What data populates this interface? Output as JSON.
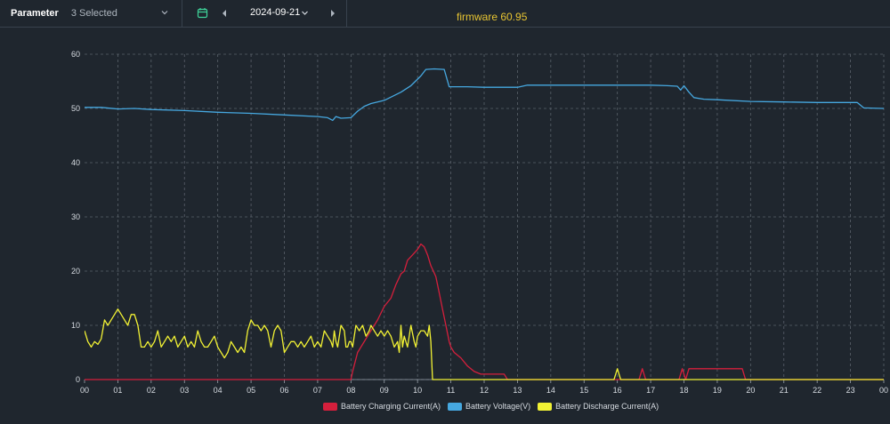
{
  "toolbar": {
    "parameter_label": "Parameter",
    "parameter_value": "3 Selected",
    "date": "2024-09-21",
    "firmware": "firmware 60.95",
    "icons": [
      "chevron-down-icon",
      "calendar-icon",
      "chevron-left-icon",
      "chevron-right-icon"
    ]
  },
  "colors": {
    "background": "#1f262e",
    "grid": "#5a626b",
    "charging": "#d51f3c",
    "voltage": "#46a8e0",
    "discharge": "#f2f234",
    "firmware": "#e7c432",
    "calendar": "#3fd49a"
  },
  "chart_data": {
    "type": "line",
    "title": "",
    "xlabel": "",
    "ylabel": "",
    "x_unit": "hour of day",
    "x_ticks": [
      "00",
      "01",
      "02",
      "03",
      "04",
      "05",
      "06",
      "07",
      "08",
      "09",
      "10",
      "11",
      "12",
      "13",
      "14",
      "15",
      "16",
      "17",
      "18",
      "19",
      "20",
      "21",
      "22",
      "23",
      "00"
    ],
    "xlim": [
      0,
      24
    ],
    "y_ticks": [
      "0",
      "10",
      "20",
      "30",
      "40",
      "50",
      "60"
    ],
    "ylim": [
      0,
      60
    ],
    "grid": true,
    "legend_position": "bottom-center",
    "series": [
      {
        "name": "Battery Charging Current(A)",
        "color": "#d51f3c",
        "points": [
          [
            0,
            0
          ],
          [
            8.0,
            0
          ],
          [
            8.05,
            1.5
          ],
          [
            8.2,
            5
          ],
          [
            8.5,
            8
          ],
          [
            8.8,
            11
          ],
          [
            9.0,
            13.5
          ],
          [
            9.2,
            15
          ],
          [
            9.35,
            17.5
          ],
          [
            9.5,
            19.5
          ],
          [
            9.6,
            20
          ],
          [
            9.7,
            22
          ],
          [
            9.85,
            23
          ],
          [
            10.0,
            24
          ],
          [
            10.1,
            25
          ],
          [
            10.2,
            24.5
          ],
          [
            10.3,
            23
          ],
          [
            10.4,
            21
          ],
          [
            10.55,
            19
          ],
          [
            10.65,
            16
          ],
          [
            10.75,
            13
          ],
          [
            10.85,
            10
          ],
          [
            10.95,
            7
          ],
          [
            11.0,
            6
          ],
          [
            11.1,
            5
          ],
          [
            11.3,
            4
          ],
          [
            11.5,
            2.5
          ],
          [
            11.7,
            1.5
          ],
          [
            11.9,
            1
          ],
          [
            12.0,
            1
          ],
          [
            12.6,
            1
          ],
          [
            12.7,
            0
          ],
          [
            16.65,
            0
          ],
          [
            16.75,
            2
          ],
          [
            16.85,
            0
          ],
          [
            17.85,
            0
          ],
          [
            17.95,
            2
          ],
          [
            18.05,
            0
          ],
          [
            18.15,
            2
          ],
          [
            19.75,
            2
          ],
          [
            19.85,
            0
          ],
          [
            24,
            0
          ]
        ]
      },
      {
        "name": "Battery Voltage(V)",
        "color": "#46a8e0",
        "points": [
          [
            0,
            50.2
          ],
          [
            0.5,
            50.2
          ],
          [
            1,
            49.9
          ],
          [
            1.5,
            50
          ],
          [
            2,
            49.8
          ],
          [
            3,
            49.6
          ],
          [
            4,
            49.3
          ],
          [
            5,
            49.1
          ],
          [
            6,
            48.8
          ],
          [
            7,
            48.5
          ],
          [
            7.3,
            48.3
          ],
          [
            7.45,
            47.8
          ],
          [
            7.55,
            48.5
          ],
          [
            7.7,
            48.2
          ],
          [
            8.0,
            48.3
          ],
          [
            8.2,
            49.5
          ],
          [
            8.4,
            50.4
          ],
          [
            8.6,
            50.9
          ],
          [
            9.0,
            51.5
          ],
          [
            9.5,
            53
          ],
          [
            9.8,
            54.2
          ],
          [
            10.1,
            56
          ],
          [
            10.25,
            57.2
          ],
          [
            10.5,
            57.3
          ],
          [
            10.8,
            57.2
          ],
          [
            10.95,
            54
          ],
          [
            11.5,
            54
          ],
          [
            12,
            53.9
          ],
          [
            13,
            53.9
          ],
          [
            13.3,
            54.3
          ],
          [
            14,
            54.3
          ],
          [
            15,
            54.3
          ],
          [
            16,
            54.3
          ],
          [
            17,
            54.3
          ],
          [
            17.5,
            54.2
          ],
          [
            17.8,
            54.1
          ],
          [
            17.9,
            53.4
          ],
          [
            18.0,
            54.2
          ],
          [
            18.15,
            53
          ],
          [
            18.3,
            52
          ],
          [
            18.6,
            51.7
          ],
          [
            19,
            51.6
          ],
          [
            20,
            51.3
          ],
          [
            21,
            51.2
          ],
          [
            22,
            51.1
          ],
          [
            23.2,
            51.1
          ],
          [
            23.4,
            50.1
          ],
          [
            24,
            50
          ]
        ]
      },
      {
        "name": "Battery Discharge Current(A)",
        "color": "#f2f234",
        "points": [
          [
            0,
            9
          ],
          [
            0.1,
            7
          ],
          [
            0.2,
            6
          ],
          [
            0.3,
            7
          ],
          [
            0.4,
            6.5
          ],
          [
            0.5,
            7.5
          ],
          [
            0.6,
            11
          ],
          [
            0.7,
            10
          ],
          [
            0.8,
            11
          ],
          [
            0.9,
            12
          ],
          [
            1.0,
            13
          ],
          [
            1.1,
            12
          ],
          [
            1.2,
            11
          ],
          [
            1.3,
            10
          ],
          [
            1.4,
            12
          ],
          [
            1.5,
            12
          ],
          [
            1.6,
            10
          ],
          [
            1.7,
            6
          ],
          [
            1.8,
            6
          ],
          [
            1.9,
            7
          ],
          [
            2.0,
            6
          ],
          [
            2.1,
            7
          ],
          [
            2.2,
            9
          ],
          [
            2.3,
            6
          ],
          [
            2.4,
            7
          ],
          [
            2.5,
            8
          ],
          [
            2.6,
            7
          ],
          [
            2.7,
            8
          ],
          [
            2.8,
            6
          ],
          [
            2.9,
            7
          ],
          [
            3.0,
            8
          ],
          [
            3.1,
            6
          ],
          [
            3.2,
            7
          ],
          [
            3.3,
            6
          ],
          [
            3.4,
            9
          ],
          [
            3.5,
            7
          ],
          [
            3.6,
            6
          ],
          [
            3.7,
            6
          ],
          [
            3.8,
            7
          ],
          [
            3.9,
            8
          ],
          [
            4.0,
            6
          ],
          [
            4.1,
            5
          ],
          [
            4.2,
            4
          ],
          [
            4.3,
            5
          ],
          [
            4.4,
            7
          ],
          [
            4.5,
            6
          ],
          [
            4.6,
            5
          ],
          [
            4.7,
            6
          ],
          [
            4.8,
            5
          ],
          [
            4.9,
            9
          ],
          [
            5.0,
            11
          ],
          [
            5.1,
            10
          ],
          [
            5.2,
            10
          ],
          [
            5.3,
            9
          ],
          [
            5.4,
            10
          ],
          [
            5.5,
            9
          ],
          [
            5.6,
            6
          ],
          [
            5.7,
            9
          ],
          [
            5.8,
            10
          ],
          [
            5.9,
            9
          ],
          [
            6.0,
            5
          ],
          [
            6.1,
            6
          ],
          [
            6.2,
            7
          ],
          [
            6.3,
            7
          ],
          [
            6.4,
            6
          ],
          [
            6.5,
            7
          ],
          [
            6.6,
            6
          ],
          [
            6.7,
            7
          ],
          [
            6.8,
            8
          ],
          [
            6.9,
            6
          ],
          [
            7.0,
            7
          ],
          [
            7.1,
            6
          ],
          [
            7.2,
            9
          ],
          [
            7.3,
            8
          ],
          [
            7.4,
            7
          ],
          [
            7.45,
            6
          ],
          [
            7.5,
            9
          ],
          [
            7.55,
            7
          ],
          [
            7.6,
            6
          ],
          [
            7.7,
            10
          ],
          [
            7.8,
            9
          ],
          [
            7.85,
            6
          ],
          [
            7.9,
            6
          ],
          [
            7.95,
            7
          ],
          [
            8.0,
            7
          ],
          [
            8.05,
            6
          ],
          [
            8.15,
            10
          ],
          [
            8.25,
            9
          ],
          [
            8.35,
            10
          ],
          [
            8.45,
            8
          ],
          [
            8.55,
            9
          ],
          [
            8.6,
            10
          ],
          [
            8.7,
            9
          ],
          [
            8.8,
            8
          ],
          [
            8.9,
            9
          ],
          [
            9.0,
            8
          ],
          [
            9.1,
            9
          ],
          [
            9.2,
            8
          ],
          [
            9.3,
            6
          ],
          [
            9.4,
            7
          ],
          [
            9.45,
            5
          ],
          [
            9.5,
            10
          ],
          [
            9.55,
            6
          ],
          [
            9.6,
            8
          ],
          [
            9.7,
            6
          ],
          [
            9.8,
            10
          ],
          [
            9.9,
            7
          ],
          [
            9.95,
            6
          ],
          [
            10.0,
            8
          ],
          [
            10.1,
            9
          ],
          [
            10.2,
            9
          ],
          [
            10.3,
            8
          ],
          [
            10.35,
            10
          ],
          [
            10.4,
            7
          ],
          [
            10.45,
            0
          ],
          [
            15.9,
            0
          ],
          [
            16.0,
            2
          ],
          [
            16.1,
            0
          ],
          [
            24.3,
            0
          ]
        ]
      }
    ]
  }
}
